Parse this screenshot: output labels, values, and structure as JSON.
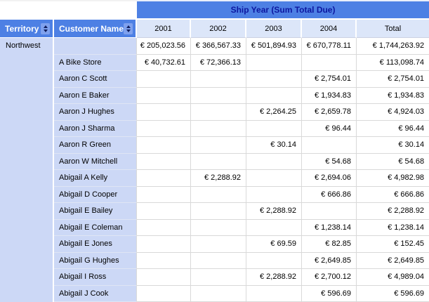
{
  "banner": {
    "title": "Ship Year (Sum Total Due)"
  },
  "columns": {
    "territory_label": "Territory",
    "customer_label": "Customer Name",
    "years": [
      "2001",
      "2002",
      "2003",
      "2004",
      "Total"
    ]
  },
  "table": {
    "territory": "Northwest",
    "rows": [
      {
        "customer": "",
        "values": [
          "€ 205,023.56",
          "€ 366,567.33",
          "€ 501,894.93",
          "€ 670,778.11",
          "€ 1,744,263.92"
        ]
      },
      {
        "customer": "A Bike Store",
        "values": [
          "€ 40,732.61",
          "€ 72,366.13",
          "",
          "",
          "€ 113,098.74"
        ]
      },
      {
        "customer": "Aaron C Scott",
        "values": [
          "",
          "",
          "",
          "€ 2,754.01",
          "€ 2,754.01"
        ]
      },
      {
        "customer": "Aaron E Baker",
        "values": [
          "",
          "",
          "",
          "€ 1,934.83",
          "€ 1,934.83"
        ]
      },
      {
        "customer": "Aaron J Hughes",
        "values": [
          "",
          "",
          "€ 2,264.25",
          "€ 2,659.78",
          "€ 4,924.03"
        ]
      },
      {
        "customer": "Aaron J Sharma",
        "values": [
          "",
          "",
          "",
          "€ 96.44",
          "€ 96.44"
        ]
      },
      {
        "customer": "Aaron R Green",
        "values": [
          "",
          "",
          "€ 30.14",
          "",
          "€ 30.14"
        ]
      },
      {
        "customer": "Aaron W Mitchell",
        "values": [
          "",
          "",
          "",
          "€ 54.68",
          "€ 54.68"
        ]
      },
      {
        "customer": "Abigail A Kelly",
        "values": [
          "",
          "€ 2,288.92",
          "",
          "€ 2,694.06",
          "€ 4,982.98"
        ]
      },
      {
        "customer": "Abigail D Cooper",
        "values": [
          "",
          "",
          "",
          "€ 666.86",
          "€ 666.86"
        ]
      },
      {
        "customer": "Abigail E Bailey",
        "values": [
          "",
          "",
          "€ 2,288.92",
          "",
          "€ 2,288.92"
        ]
      },
      {
        "customer": "Abigail E Coleman",
        "values": [
          "",
          "",
          "",
          "€ 1,238.14",
          "€ 1,238.14"
        ]
      },
      {
        "customer": "Abigail E Jones",
        "values": [
          "",
          "",
          "€ 69.59",
          "€ 82.85",
          "€ 152.45"
        ]
      },
      {
        "customer": "Abigail G Hughes",
        "values": [
          "",
          "",
          "",
          "€ 2,649.85",
          "€ 2,649.85"
        ]
      },
      {
        "customer": "Abigail I Ross",
        "values": [
          "",
          "",
          "€ 2,288.92",
          "€ 2,700.12",
          "€ 4,989.04"
        ]
      },
      {
        "customer": "Abigail J Cook",
        "values": [
          "",
          "",
          "",
          "€ 596.69",
          "€ 596.69"
        ]
      }
    ]
  },
  "icons": {
    "territory_sort": "sort-updown-icon",
    "customer_sort": "sort-updown-icon"
  },
  "colors": {
    "header_blue": "#4d80e4",
    "banner_text": "#0d17a0",
    "row_label_tint": "#ccd8f6",
    "year_row_tint": "#dce6f9",
    "grid_line": "#d9d9d9"
  }
}
